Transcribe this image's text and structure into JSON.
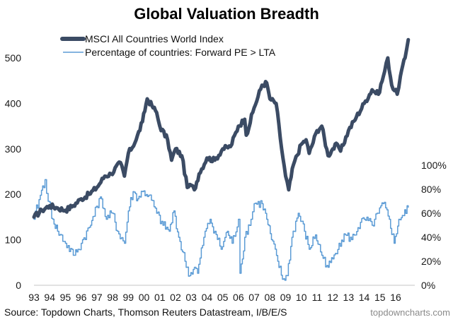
{
  "chart_data": {
    "type": "line",
    "title": "Global Valuation Breadth",
    "xlabel": "",
    "ylabel_left": "",
    "ylabel_right": "",
    "x_tick_labels": [
      "93",
      "94",
      "95",
      "96",
      "97",
      "98",
      "99",
      "00",
      "01",
      "02",
      "03",
      "04",
      "05",
      "06",
      "07",
      "08",
      "09",
      "10",
      "11",
      "12",
      "13",
      "14",
      "15",
      "16"
    ],
    "x_tick_years": [
      1993,
      1994,
      1995,
      1996,
      1997,
      1998,
      1999,
      2000,
      2001,
      2002,
      2003,
      2004,
      2005,
      2006,
      2007,
      2008,
      2009,
      2010,
      2011,
      2012,
      2013,
      2014,
      2015,
      2016
    ],
    "xlim": [
      1993,
      2016.85
    ],
    "ylim_left": [
      0,
      500
    ],
    "y_ticks_left": [
      "0",
      "100",
      "200",
      "300",
      "400",
      "500"
    ],
    "y_tick_values_left": [
      0,
      100,
      200,
      300,
      400,
      500
    ],
    "ylim_right": [
      0,
      100
    ],
    "y_ticks_right": [
      "0%",
      "20%",
      "40%",
      "60%",
      "80%",
      "100%"
    ],
    "y_tick_values_right": [
      0,
      20,
      40,
      60,
      80,
      100
    ],
    "grid": false,
    "legend_position": "top-left",
    "series": [
      {
        "name": "MSCI All Countries World Index",
        "axis": "left",
        "color": "#3b4b64",
        "x": [
          1993.0,
          1993.5,
          1994.0,
          1994.5,
          1995.0,
          1995.5,
          1996.0,
          1996.5,
          1997.0,
          1997.5,
          1997.9,
          1998.5,
          1998.75,
          1999.0,
          1999.5,
          1999.9,
          2000.2,
          2000.5,
          2000.8,
          2001.0,
          2001.5,
          2001.75,
          2002.0,
          2002.4,
          2002.75,
          2003.0,
          2003.2,
          2003.5,
          2004.0,
          2004.5,
          2005.0,
          2005.5,
          2006.0,
          2006.4,
          2006.5,
          2007.0,
          2007.5,
          2007.8,
          2008.0,
          2008.4,
          2008.75,
          2009.0,
          2009.2,
          2009.5,
          2010.0,
          2010.3,
          2010.5,
          2011.0,
          2011.3,
          2011.7,
          2012.0,
          2012.3,
          2012.5,
          2013.0,
          2013.5,
          2014.0,
          2014.5,
          2014.9,
          2015.3,
          2015.5,
          2015.75,
          2016.1,
          2016.3,
          2016.6,
          2016.8
        ],
        "values": [
          150,
          165,
          175,
          170,
          165,
          175,
          190,
          200,
          215,
          240,
          245,
          270,
          240,
          290,
          320,
          360,
          410,
          395,
          380,
          350,
          320,
          275,
          300,
          285,
          215,
          220,
          210,
          245,
          280,
          275,
          300,
          305,
          350,
          365,
          330,
          390,
          440,
          445,
          410,
          400,
          300,
          240,
          210,
          265,
          310,
          320,
          290,
          340,
          350,
          285,
          300,
          310,
          295,
          340,
          370,
          400,
          430,
          420,
          470,
          500,
          440,
          420,
          460,
          500,
          540
        ]
      },
      {
        "name": "Percentage of countries: Forward PE > LTA",
        "axis": "right",
        "color": "#5b9bd5",
        "x": [
          1993.0,
          1993.4,
          1993.7,
          1993.9,
          1994.2,
          1994.5,
          1995.0,
          1995.5,
          1995.8,
          1996.0,
          1996.6,
          1996.9,
          1997.3,
          1997.6,
          1998.0,
          1998.3,
          1998.75,
          1999.0,
          1999.3,
          1999.6,
          1999.9,
          2000.3,
          2000.8,
          2001.2,
          2001.6,
          2001.9,
          2002.2,
          2002.6,
          2002.9,
          2003.2,
          2003.4,
          2003.8,
          2004.2,
          2004.5,
          2004.9,
          2005.3,
          2005.6,
          2006.0,
          2006.1,
          2006.4,
          2006.8,
          2007.0,
          2007.5,
          2007.8,
          2008.1,
          2008.5,
          2008.8,
          2009.1,
          2009.4,
          2009.8,
          2010.2,
          2010.5,
          2010.9,
          2011.3,
          2011.7,
          2012.0,
          2012.4,
          2012.8,
          2013.2,
          2013.6,
          2014.0,
          2014.5,
          2014.9,
          2015.2,
          2015.6,
          2015.9,
          2016.2,
          2016.5,
          2016.8
        ],
        "values": [
          55,
          75,
          88,
          70,
          55,
          45,
          35,
          25,
          30,
          35,
          50,
          65,
          72,
          55,
          60,
          45,
          35,
          62,
          78,
          72,
          78,
          75,
          60,
          50,
          45,
          62,
          40,
          20,
          8,
          15,
          10,
          40,
          55,
          45,
          30,
          45,
          35,
          55,
          10,
          40,
          55,
          68,
          68,
          55,
          38,
          20,
          5,
          8,
          40,
          60,
          45,
          30,
          42,
          25,
          15,
          22,
          35,
          42,
          38,
          48,
          55,
          50,
          60,
          68,
          55,
          35,
          55,
          58,
          65
        ]
      }
    ]
  },
  "legend": {
    "items": [
      {
        "label": "MSCI All Countries World Index"
      },
      {
        "label": "Percentage of countries: Forward PE > LTA"
      }
    ]
  },
  "footer": {
    "source": "Source: Topdown Charts, Thomson Reuters Datastream, I/B/E/S",
    "brand": "topdowncharts.com"
  },
  "colors": {
    "msci": "#3b4b64",
    "pct": "#5b9bd5",
    "axis": "#d9d9d9"
  }
}
